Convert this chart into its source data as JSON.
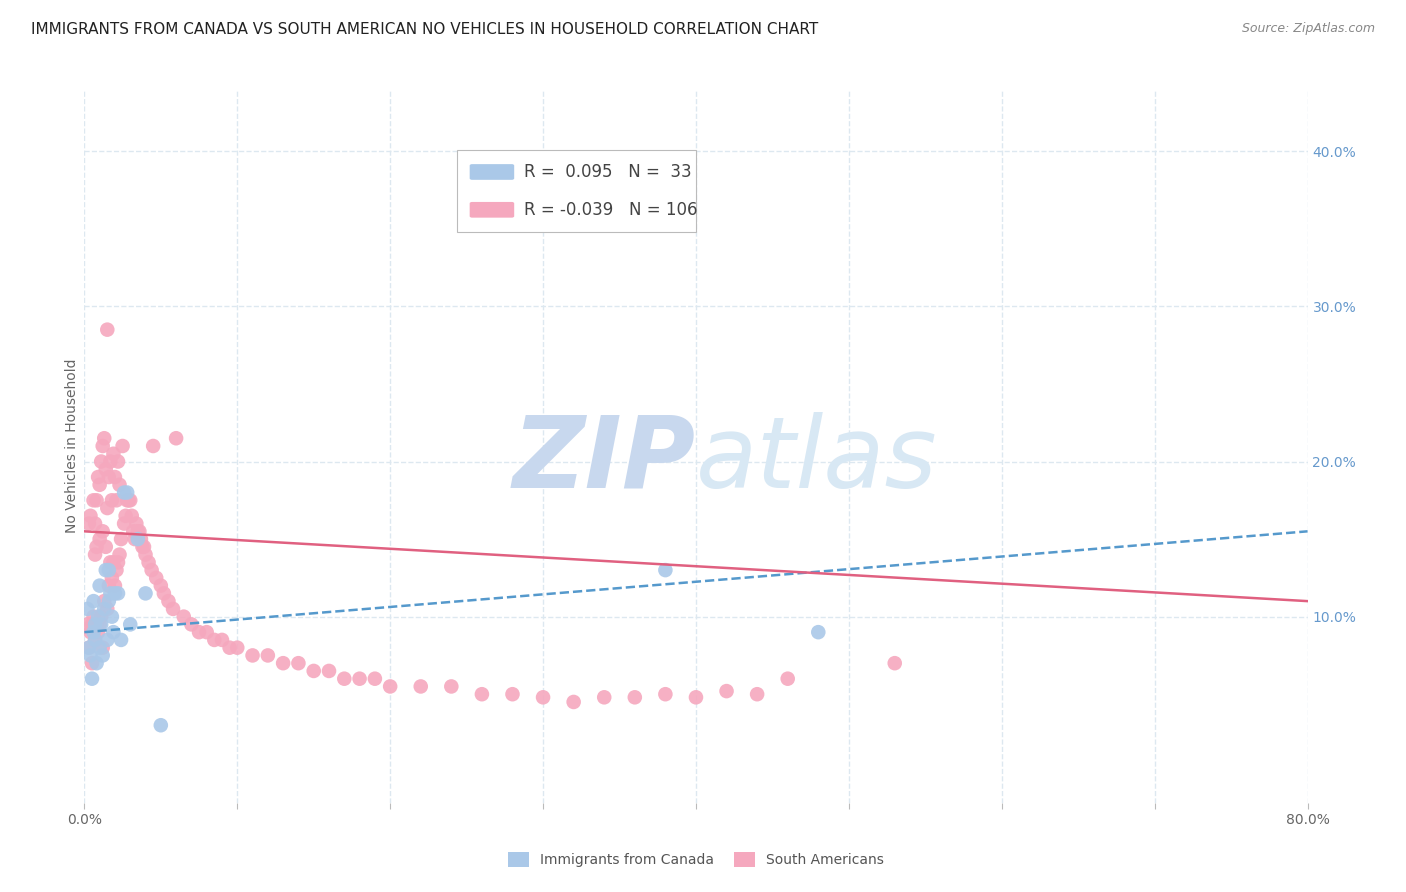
{
  "title": "IMMIGRANTS FROM CANADA VS SOUTH AMERICAN NO VEHICLES IN HOUSEHOLD CORRELATION CHART",
  "source": "Source: ZipAtlas.com",
  "ylabel": "No Vehicles in Household",
  "xlim": [
    0.0,
    0.8
  ],
  "ylim": [
    -0.02,
    0.44
  ],
  "xticks": [
    0.0,
    0.1,
    0.2,
    0.3,
    0.4,
    0.5,
    0.6,
    0.7,
    0.8
  ],
  "xtick_labels": [
    "0.0%",
    "",
    "",
    "",
    "",
    "",
    "",
    "",
    "80.0%"
  ],
  "yticks_right": [
    0.1,
    0.2,
    0.3,
    0.4
  ],
  "ytick_right_labels": [
    "10.0%",
    "20.0%",
    "30.0%",
    "40.0%"
  ],
  "legend_blue_r": "0.095",
  "legend_blue_n": "33",
  "legend_pink_r": "-0.039",
  "legend_pink_n": "106",
  "blue_color": "#aac8e8",
  "pink_color": "#f5a8be",
  "trend_blue_color": "#5599cc",
  "trend_pink_color": "#e06080",
  "blue_scatter_x": [
    0.002,
    0.003,
    0.004,
    0.005,
    0.006,
    0.006,
    0.007,
    0.007,
    0.008,
    0.009,
    0.01,
    0.01,
    0.011,
    0.012,
    0.013,
    0.014,
    0.015,
    0.016,
    0.016,
    0.017,
    0.018,
    0.019,
    0.02,
    0.022,
    0.024,
    0.026,
    0.028,
    0.03,
    0.035,
    0.04,
    0.05,
    0.38,
    0.48
  ],
  "blue_scatter_y": [
    0.105,
    0.08,
    0.075,
    0.06,
    0.09,
    0.11,
    0.085,
    0.095,
    0.07,
    0.1,
    0.08,
    0.12,
    0.095,
    0.075,
    0.105,
    0.13,
    0.085,
    0.13,
    0.11,
    0.115,
    0.1,
    0.09,
    0.115,
    0.115,
    0.085,
    0.18,
    0.18,
    0.095,
    0.15,
    0.115,
    0.03,
    0.13,
    0.09
  ],
  "pink_scatter_x": [
    0.002,
    0.003,
    0.003,
    0.004,
    0.004,
    0.005,
    0.005,
    0.006,
    0.006,
    0.007,
    0.007,
    0.007,
    0.008,
    0.008,
    0.008,
    0.009,
    0.009,
    0.01,
    0.01,
    0.01,
    0.011,
    0.011,
    0.012,
    0.012,
    0.012,
    0.013,
    0.013,
    0.014,
    0.014,
    0.015,
    0.015,
    0.015,
    0.016,
    0.016,
    0.017,
    0.017,
    0.018,
    0.018,
    0.019,
    0.019,
    0.02,
    0.02,
    0.021,
    0.021,
    0.022,
    0.022,
    0.023,
    0.023,
    0.024,
    0.025,
    0.026,
    0.027,
    0.028,
    0.029,
    0.03,
    0.031,
    0.032,
    0.033,
    0.034,
    0.035,
    0.036,
    0.037,
    0.038,
    0.039,
    0.04,
    0.042,
    0.044,
    0.045,
    0.047,
    0.05,
    0.052,
    0.055,
    0.058,
    0.06,
    0.065,
    0.07,
    0.075,
    0.08,
    0.085,
    0.09,
    0.095,
    0.1,
    0.11,
    0.12,
    0.13,
    0.14,
    0.15,
    0.16,
    0.17,
    0.18,
    0.19,
    0.2,
    0.22,
    0.24,
    0.26,
    0.28,
    0.3,
    0.32,
    0.34,
    0.36,
    0.38,
    0.4,
    0.42,
    0.44,
    0.46,
    0.53
  ],
  "pink_scatter_y": [
    0.095,
    0.08,
    0.16,
    0.09,
    0.165,
    0.07,
    0.095,
    0.1,
    0.175,
    0.085,
    0.14,
    0.16,
    0.095,
    0.145,
    0.175,
    0.09,
    0.19,
    0.095,
    0.15,
    0.185,
    0.1,
    0.2,
    0.08,
    0.155,
    0.21,
    0.11,
    0.215,
    0.145,
    0.195,
    0.105,
    0.17,
    0.285,
    0.12,
    0.19,
    0.135,
    0.2,
    0.125,
    0.175,
    0.135,
    0.205,
    0.12,
    0.19,
    0.13,
    0.175,
    0.135,
    0.2,
    0.14,
    0.185,
    0.15,
    0.21,
    0.16,
    0.165,
    0.175,
    0.175,
    0.175,
    0.165,
    0.155,
    0.15,
    0.16,
    0.155,
    0.155,
    0.15,
    0.145,
    0.145,
    0.14,
    0.135,
    0.13,
    0.21,
    0.125,
    0.12,
    0.115,
    0.11,
    0.105,
    0.215,
    0.1,
    0.095,
    0.09,
    0.09,
    0.085,
    0.085,
    0.08,
    0.08,
    0.075,
    0.075,
    0.07,
    0.07,
    0.065,
    0.065,
    0.06,
    0.06,
    0.06,
    0.055,
    0.055,
    0.055,
    0.05,
    0.05,
    0.048,
    0.045,
    0.048,
    0.048,
    0.05,
    0.048,
    0.052,
    0.05,
    0.06,
    0.07
  ],
  "blue_trend_x": [
    0.0,
    0.8
  ],
  "blue_trend_y": [
    0.09,
    0.155
  ],
  "pink_trend_x": [
    0.0,
    0.8
  ],
  "pink_trend_y": [
    0.155,
    0.11
  ],
  "watermark_zip": "ZIP",
  "watermark_atlas": "atlas",
  "watermark_color": "#c8d8ee",
  "background_color": "#ffffff",
  "grid_color": "#dde8f0",
  "title_fontsize": 11,
  "axis_label_fontsize": 10,
  "tick_fontsize": 10,
  "legend_fontsize": 11,
  "source_fontsize": 9
}
